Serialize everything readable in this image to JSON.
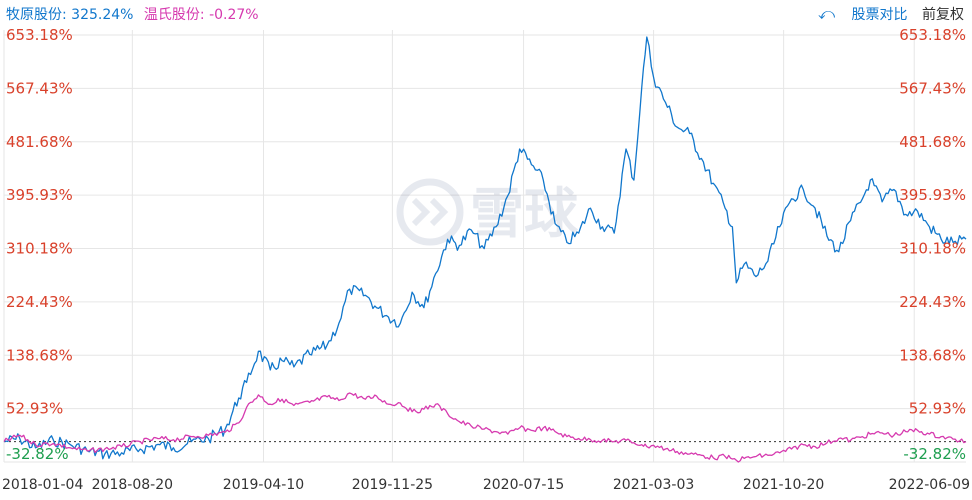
{
  "legend": {
    "series1": "牧原股份: 325.24%",
    "series2": "温氏股份: -0.27%"
  },
  "toolbar": {
    "back_icon": "undo-icon",
    "compare_label": "股票对比",
    "adjust_label": "前复权"
  },
  "watermark": {
    "text": "雪球",
    "icon": "snowball-logo-icon"
  },
  "colors": {
    "series1": "#1177cc",
    "series2": "#d63aaf",
    "axis_up": "#d9412b",
    "axis_down": "#1e9e4f",
    "grid": "#e6e6e6",
    "zero_line": "#333333"
  },
  "chart_data": {
    "type": "line",
    "y_unit": "%",
    "ylim": [
      -32.82,
      653.18
    ],
    "y_ticks": [
      -32.82,
      52.93,
      138.68,
      224.43,
      310.18,
      395.93,
      481.68,
      567.43,
      653.18
    ],
    "y_tick_labels": [
      "-32.82%",
      "52.93%",
      "138.68%",
      "224.43%",
      "310.18%",
      "395.93%",
      "481.68%",
      "567.43%",
      "653.18%"
    ],
    "x_tick_labels": [
      "2018-01-04",
      "2018-08-20",
      "2019-04-10",
      "2019-11-25",
      "2020-07-15",
      "2021-03-03",
      "2021-10-20",
      "2022-06-09"
    ],
    "x_range": [
      "2018-01-04",
      "2022-09-09"
    ],
    "baseline": 0,
    "grid": true,
    "series": [
      {
        "name": "牧原股份",
        "final_value": 325.24,
        "points": [
          [
            "2018-01-04",
            0
          ],
          [
            "2018-02-01",
            5
          ],
          [
            "2018-03-01",
            -10
          ],
          [
            "2018-04-02",
            2
          ],
          [
            "2018-05-02",
            -5
          ],
          [
            "2018-06-01",
            -15
          ],
          [
            "2018-07-02",
            -20
          ],
          [
            "2018-08-01",
            -18
          ],
          [
            "2018-09-03",
            -12
          ],
          [
            "2018-10-08",
            -5
          ],
          [
            "2018-11-01",
            -10
          ],
          [
            "2018-12-03",
            0
          ],
          [
            "2019-01-02",
            5
          ],
          [
            "2019-02-01",
            20
          ],
          [
            "2019-02-25",
            70
          ],
          [
            "2019-03-11",
            95
          ],
          [
            "2019-04-01",
            145
          ],
          [
            "2019-04-22",
            115
          ],
          [
            "2019-05-13",
            130
          ],
          [
            "2019-06-03",
            120
          ],
          [
            "2019-07-01",
            140
          ],
          [
            "2019-08-01",
            155
          ],
          [
            "2019-08-22",
            190
          ],
          [
            "2019-09-10",
            245
          ],
          [
            "2019-10-08",
            235
          ],
          [
            "2019-10-28",
            215
          ],
          [
            "2019-11-18",
            200
          ],
          [
            "2019-12-09",
            190
          ],
          [
            "2019-12-30",
            240
          ],
          [
            "2020-01-20",
            215
          ],
          [
            "2020-02-10",
            270
          ],
          [
            "2020-03-02",
            325
          ],
          [
            "2020-03-23",
            315
          ],
          [
            "2020-04-13",
            340
          ],
          [
            "2020-05-06",
            310
          ],
          [
            "2020-05-27",
            345
          ],
          [
            "2020-06-17",
            395
          ],
          [
            "2020-07-08",
            470
          ],
          [
            "2020-07-29",
            445
          ],
          [
            "2020-08-19",
            420
          ],
          [
            "2020-09-09",
            350
          ],
          [
            "2020-09-30",
            320
          ],
          [
            "2020-10-21",
            335
          ],
          [
            "2020-11-11",
            375
          ],
          [
            "2020-12-02",
            345
          ],
          [
            "2020-12-23",
            335
          ],
          [
            "2021-01-13",
            470
          ],
          [
            "2021-01-27",
            420
          ],
          [
            "2021-02-10",
            570
          ],
          [
            "2021-02-19",
            650
          ],
          [
            "2021-03-03",
            585
          ],
          [
            "2021-03-24",
            545
          ],
          [
            "2021-04-14",
            505
          ],
          [
            "2021-05-06",
            495
          ],
          [
            "2021-05-27",
            455
          ],
          [
            "2021-06-17",
            415
          ],
          [
            "2021-07-08",
            375
          ],
          [
            "2021-07-21",
            345
          ],
          [
            "2021-07-28",
            255
          ],
          [
            "2021-08-11",
            285
          ],
          [
            "2021-09-01",
            265
          ],
          [
            "2021-09-22",
            290
          ],
          [
            "2021-10-13",
            345
          ],
          [
            "2021-11-03",
            390
          ],
          [
            "2021-11-24",
            405
          ],
          [
            "2021-12-15",
            375
          ],
          [
            "2022-01-05",
            330
          ],
          [
            "2022-01-26",
            305
          ],
          [
            "2022-02-16",
            355
          ],
          [
            "2022-03-09",
            390
          ],
          [
            "2022-03-23",
            420
          ],
          [
            "2022-04-13",
            385
          ],
          [
            "2022-05-04",
            405
          ],
          [
            "2022-05-25",
            365
          ],
          [
            "2022-06-15",
            370
          ],
          [
            "2022-07-06",
            345
          ],
          [
            "2022-07-27",
            325
          ],
          [
            "2022-08-17",
            320
          ],
          [
            "2022-09-09",
            325.24
          ]
        ]
      },
      {
        "name": "温氏股份",
        "final_value": -0.27,
        "points": [
          [
            "2018-01-04",
            0
          ],
          [
            "2018-02-01",
            10
          ],
          [
            "2018-03-01",
            -5
          ],
          [
            "2018-04-02",
            -3
          ],
          [
            "2018-05-02",
            -10
          ],
          [
            "2018-06-01",
            -15
          ],
          [
            "2018-07-02",
            -12
          ],
          [
            "2018-08-01",
            -8
          ],
          [
            "2018-09-03",
            0
          ],
          [
            "2018-10-08",
            5
          ],
          [
            "2018-11-01",
            3
          ],
          [
            "2018-12-03",
            8
          ],
          [
            "2019-01-02",
            10
          ],
          [
            "2019-02-01",
            15
          ],
          [
            "2019-02-25",
            30
          ],
          [
            "2019-03-11",
            55
          ],
          [
            "2019-04-01",
            75
          ],
          [
            "2019-04-22",
            60
          ],
          [
            "2019-05-13",
            68
          ],
          [
            "2019-06-03",
            58
          ],
          [
            "2019-07-01",
            63
          ],
          [
            "2019-08-01",
            72
          ],
          [
            "2019-08-22",
            66
          ],
          [
            "2019-09-10",
            78
          ],
          [
            "2019-10-08",
            68
          ],
          [
            "2019-10-28",
            73
          ],
          [
            "2019-11-18",
            60
          ],
          [
            "2019-12-09",
            62
          ],
          [
            "2019-12-30",
            48
          ],
          [
            "2020-01-20",
            52
          ],
          [
            "2020-02-10",
            60
          ],
          [
            "2020-03-02",
            45
          ],
          [
            "2020-03-23",
            32
          ],
          [
            "2020-04-13",
            25
          ],
          [
            "2020-05-06",
            20
          ],
          [
            "2020-05-27",
            16
          ],
          [
            "2020-06-17",
            12
          ],
          [
            "2020-07-08",
            22
          ],
          [
            "2020-07-29",
            18
          ],
          [
            "2020-08-19",
            22
          ],
          [
            "2020-09-09",
            16
          ],
          [
            "2020-09-30",
            8
          ],
          [
            "2020-10-21",
            5
          ],
          [
            "2020-11-11",
            3
          ],
          [
            "2020-12-02",
            2
          ],
          [
            "2020-12-23",
            0
          ],
          [
            "2021-01-13",
            2
          ],
          [
            "2021-01-27",
            -2
          ],
          [
            "2021-02-10",
            -5
          ],
          [
            "2021-02-19",
            -8
          ],
          [
            "2021-03-03",
            -6
          ],
          [
            "2021-03-24",
            -12
          ],
          [
            "2021-04-14",
            -16
          ],
          [
            "2021-05-06",
            -20
          ],
          [
            "2021-05-27",
            -22
          ],
          [
            "2021-06-17",
            -26
          ],
          [
            "2021-07-08",
            -24
          ],
          [
            "2021-07-21",
            -28
          ],
          [
            "2021-07-28",
            -30
          ],
          [
            "2021-08-11",
            -27
          ],
          [
            "2021-09-01",
            -24
          ],
          [
            "2021-09-22",
            -22
          ],
          [
            "2021-10-13",
            -18
          ],
          [
            "2021-11-03",
            -12
          ],
          [
            "2021-11-24",
            -5
          ],
          [
            "2021-12-15",
            -8
          ],
          [
            "2022-01-05",
            -2
          ],
          [
            "2022-01-26",
            5
          ],
          [
            "2022-02-16",
            2
          ],
          [
            "2022-03-09",
            8
          ],
          [
            "2022-03-23",
            12
          ],
          [
            "2022-04-13",
            14
          ],
          [
            "2022-05-04",
            10
          ],
          [
            "2022-05-25",
            16
          ],
          [
            "2022-06-15",
            18
          ],
          [
            "2022-07-06",
            12
          ],
          [
            "2022-07-27",
            8
          ],
          [
            "2022-08-17",
            4
          ],
          [
            "2022-09-09",
            -0.27
          ]
        ]
      }
    ]
  }
}
